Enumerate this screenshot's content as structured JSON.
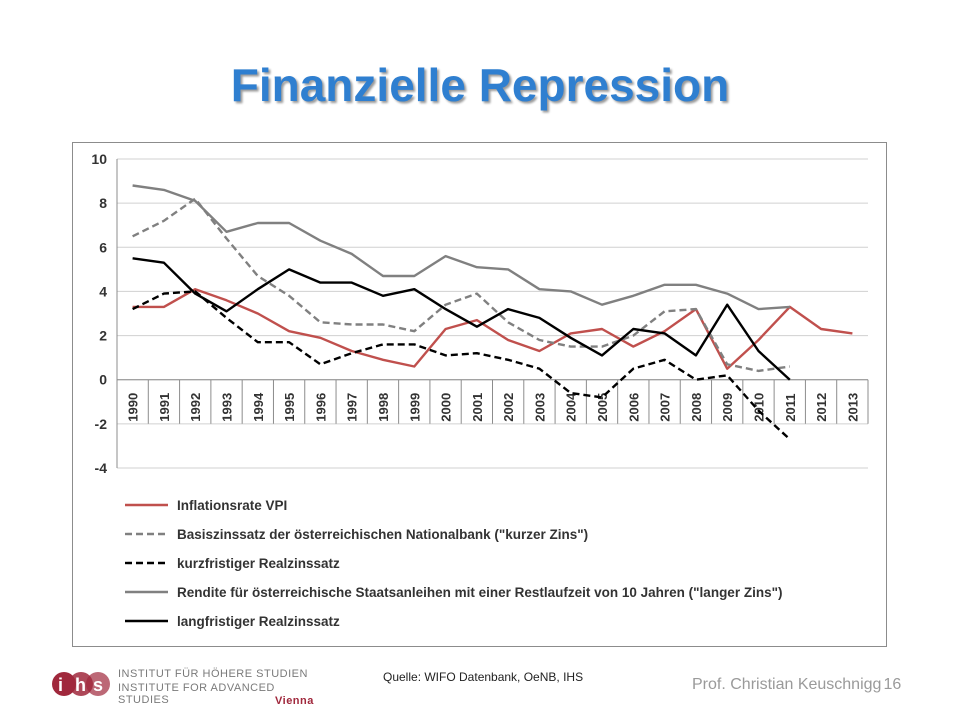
{
  "slide": {
    "title": "Finanzielle Repression",
    "source": "Quelle: WIFO Datenbank, OeNB, IHS",
    "footer_author": "Prof. Christian Keuschnigg",
    "page_number": "16"
  },
  "logo": {
    "mark": "ihs",
    "line1": "INSTITUT FÜR HÖHERE STUDIEN",
    "line2": "INSTITUTE FOR ADVANCED STUDIES",
    "line3": "Vienna",
    "color": "#a0283c"
  },
  "chart_data": {
    "type": "line",
    "x": [
      "1990",
      "1991",
      "1992",
      "1993",
      "1994",
      "1995",
      "1996",
      "1997",
      "1998",
      "1999",
      "2000",
      "2001",
      "2002",
      "2003",
      "2004",
      "2005",
      "2006",
      "2007",
      "2008",
      "2009",
      "2010",
      "2011",
      "2012",
      "2013"
    ],
    "ylim": [
      -4,
      10
    ],
    "yticks": [
      10,
      8,
      6,
      4,
      2,
      0,
      -2,
      -4
    ],
    "grid": true,
    "legend_position": "bottom",
    "series": [
      {
        "name": "Inflationsrate VPI",
        "color": "#c0504d",
        "dash": "solid",
        "values": [
          3.3,
          3.3,
          4.1,
          3.6,
          3.0,
          2.2,
          1.9,
          1.3,
          0.9,
          0.6,
          2.3,
          2.7,
          1.8,
          1.3,
          2.1,
          2.3,
          1.5,
          2.2,
          3.2,
          0.5,
          1.8,
          3.3,
          2.3,
          2.1
        ]
      },
      {
        "name": "Basiszinssatz der österreichischen Nationalbank (\"kurzer Zins\")",
        "color": "#808080",
        "dash": "dashed",
        "values": [
          6.5,
          7.2,
          8.2,
          6.4,
          4.7,
          3.8,
          2.6,
          2.5,
          2.5,
          2.2,
          3.4,
          3.9,
          2.6,
          1.8,
          1.5,
          1.5,
          2.0,
          3.1,
          3.2,
          0.7,
          0.4,
          0.6,
          null,
          null
        ]
      },
      {
        "name": "kurzfristiger Realzinssatz",
        "color": "#000000",
        "dash": "dashed",
        "values": [
          3.2,
          3.9,
          4.0,
          2.8,
          1.7,
          1.7,
          0.7,
          1.2,
          1.6,
          1.6,
          1.1,
          1.2,
          0.9,
          0.5,
          -0.6,
          -0.8,
          0.5,
          0.9,
          0.0,
          0.2,
          -1.4,
          -2.7,
          null,
          null
        ]
      },
      {
        "name": "Rendite für österreichische Staatsanleihen mit einer Restlaufzeit von 10 Jahren (\"langer Zins\")",
        "color": "#808080",
        "dash": "solid",
        "values": [
          8.8,
          8.6,
          8.1,
          6.7,
          7.1,
          7.1,
          6.3,
          5.7,
          4.7,
          4.7,
          5.6,
          5.1,
          5.0,
          4.1,
          4.0,
          3.4,
          3.8,
          4.3,
          4.3,
          3.9,
          3.2,
          3.3,
          null,
          null
        ]
      },
      {
        "name": "langfristiger Realzinssatz",
        "color": "#000000",
        "dash": "solid",
        "values": [
          5.5,
          5.3,
          3.9,
          3.1,
          4.1,
          5.0,
          4.4,
          4.4,
          3.8,
          4.1,
          3.2,
          2.4,
          3.2,
          2.8,
          1.9,
          1.1,
          2.3,
          2.1,
          1.1,
          3.4,
          1.3,
          0.0,
          null,
          null
        ]
      }
    ]
  }
}
